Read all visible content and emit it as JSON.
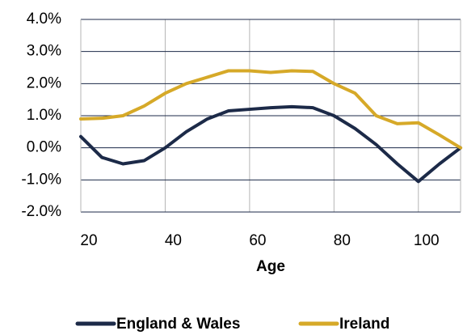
{
  "chart_data": {
    "type": "line",
    "x_label": "Age",
    "x": [
      20,
      25,
      30,
      35,
      40,
      45,
      50,
      55,
      60,
      65,
      70,
      75,
      80,
      85,
      90,
      95,
      100,
      105,
      110
    ],
    "series": [
      {
        "name": "England & Wales",
        "color": "#1c2a48",
        "values": [
          0.35,
          -0.3,
          -0.5,
          -0.4,
          0.0,
          0.5,
          0.9,
          1.15,
          1.2,
          1.25,
          1.28,
          1.25,
          1.0,
          0.6,
          0.1,
          -0.5,
          -1.05,
          -0.5,
          0.0
        ]
      },
      {
        "name": "Ireland",
        "color": "#d6a928",
        "values": [
          0.9,
          0.92,
          1.0,
          1.3,
          1.7,
          2.0,
          2.2,
          2.4,
          2.4,
          2.35,
          2.4,
          2.38,
          2.0,
          1.7,
          1.0,
          0.75,
          0.78,
          0.4,
          0.0
        ]
      }
    ],
    "xlim": [
      20,
      110
    ],
    "xticks": [
      20,
      40,
      60,
      80,
      100
    ],
    "ylim": [
      -2,
      4
    ],
    "yticks": [
      {
        "value": -2,
        "label": "-2.0%"
      },
      {
        "value": -1,
        "label": "-1.0%"
      },
      {
        "value": 0,
        "label": "0.0%"
      },
      {
        "value": 1,
        "label": "1.0%"
      },
      {
        "value": 2,
        "label": "2.0%"
      },
      {
        "value": 3,
        "label": "3.0%"
      },
      {
        "value": 4,
        "label": "4.0%"
      }
    ],
    "grid": true,
    "legend": "bottom"
  }
}
